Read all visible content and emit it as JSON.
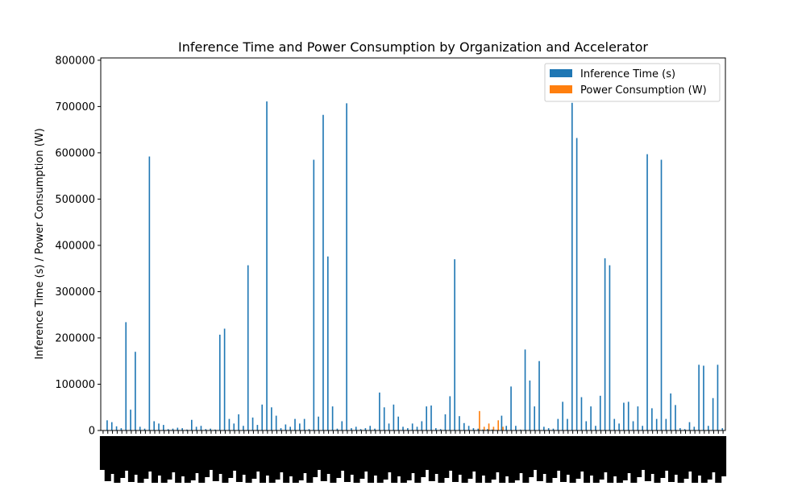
{
  "chart_data": {
    "type": "bar",
    "title": "Inference Time and Power Consumption by Organization and Accelerator",
    "xlabel": "",
    "ylabel": "Inference Time (s) / Power Consumption (W)",
    "ylim": [
      0,
      805000
    ],
    "yticks": [
      0,
      100000,
      200000,
      300000,
      400000,
      500000,
      600000,
      700000,
      800000
    ],
    "ytick_labels": [
      "0",
      "100000",
      "200000",
      "300000",
      "400000",
      "500000",
      "600000",
      "700000",
      "800000"
    ],
    "grid": false,
    "legend_position": "top-right",
    "category_labels_note": "x tick labels are rotated 90° and overlap so heavily that they are illegible",
    "series": [
      {
        "name": "Inference Time (s)",
        "color": "#1f77b4",
        "values": [
          0,
          22000,
          18000,
          9000,
          5000,
          234000,
          45000,
          170000,
          8000,
          4000,
          592000,
          20000,
          15000,
          12000,
          3000,
          4000,
          6000,
          5000,
          2000,
          23000,
          8000,
          10000,
          3000,
          4000,
          2000,
          207000,
          220000,
          25000,
          15000,
          35000,
          10000,
          357000,
          28000,
          12000,
          56000,
          711000,
          50000,
          32000,
          5000,
          13000,
          8000,
          25000,
          15000,
          25000,
          3000,
          585000,
          30000,
          682000,
          376000,
          52000,
          4000,
          20000,
          707000,
          5000,
          8000,
          3000,
          5000,
          10000,
          4000,
          82000,
          50000,
          15000,
          56000,
          30000,
          8000,
          5000,
          15000,
          8000,
          20000,
          52000,
          54000,
          5000,
          3000,
          35000,
          74000,
          370000,
          31000,
          16000,
          10000,
          5000,
          4000,
          2000,
          3000,
          2000,
          1000,
          32000,
          10000,
          95000,
          10000,
          2000,
          175000,
          108000,
          52000,
          150000,
          8000,
          5000,
          4000,
          25000,
          62000,
          25000,
          708000,
          632000,
          72000,
          20000,
          52000,
          10000,
          75000,
          372000,
          357000,
          25000,
          15000,
          60000,
          62000,
          20000,
          52000,
          10000,
          597000,
          48000,
          25000,
          585000,
          25000,
          80000,
          55000,
          5000,
          3000,
          18000,
          8000,
          142000,
          140000,
          10000,
          70000,
          142000,
          5000
        ]
      },
      {
        "name": "Power Consumption (W)",
        "color": "#ff7f0e",
        "values": [
          0,
          0,
          0,
          0,
          0,
          0,
          0,
          0,
          0,
          0,
          0,
          0,
          0,
          0,
          0,
          0,
          0,
          0,
          0,
          0,
          0,
          0,
          0,
          0,
          0,
          0,
          0,
          0,
          0,
          0,
          0,
          0,
          0,
          0,
          0,
          0,
          0,
          0,
          0,
          0,
          0,
          0,
          0,
          0,
          0,
          0,
          0,
          0,
          0,
          0,
          0,
          0,
          0,
          0,
          0,
          0,
          0,
          0,
          0,
          0,
          0,
          0,
          0,
          0,
          0,
          0,
          0,
          0,
          0,
          0,
          0,
          0,
          0,
          0,
          0,
          0,
          0,
          0,
          0,
          0,
          42000,
          8000,
          15000,
          8000,
          22000,
          8000,
          0,
          0,
          0,
          0,
          0,
          0,
          0,
          0,
          0,
          0,
          0,
          0,
          0,
          0,
          0,
          0,
          0,
          0,
          0,
          0,
          0,
          0,
          0,
          0,
          0,
          0,
          0,
          0,
          0,
          0,
          0,
          0,
          0,
          0,
          0,
          0,
          0,
          0,
          0,
          0,
          0,
          0,
          0,
          0,
          0,
          0,
          0
        ]
      }
    ]
  }
}
